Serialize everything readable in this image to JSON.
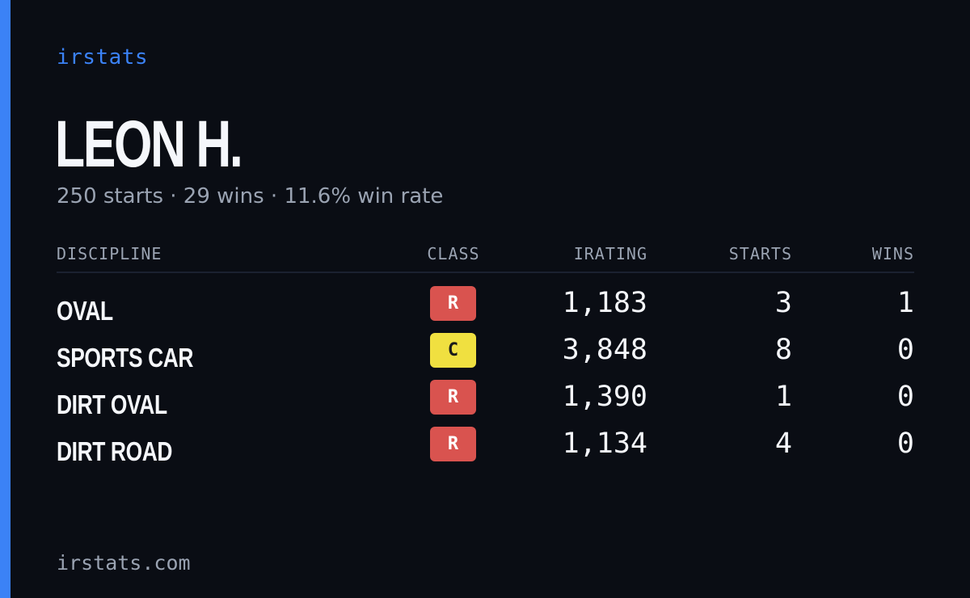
{
  "brand": "irstats",
  "player": {
    "name": "LEON H.",
    "summary": "250 starts · 29 wins · 11.6% win rate"
  },
  "colors": {
    "background": "#0a0d14",
    "accent": "#3b82f6",
    "muted_text": "#9aa3b2",
    "class_R": "#d9534f",
    "class_C": "#f0e040"
  },
  "table": {
    "headers": {
      "discipline": "DISCIPLINE",
      "class": "CLASS",
      "irating": "IRATING",
      "starts": "STARTS",
      "wins": "WINS"
    },
    "rows": [
      {
        "discipline": "OVAL",
        "class": "R",
        "class_color": "#d9534f",
        "class_text_color": "#ffffff",
        "irating": "1,183",
        "starts": "3",
        "wins": "1"
      },
      {
        "discipline": "SPORTS CAR",
        "class": "C",
        "class_color": "#f0e040",
        "class_text_color": "#1a1a1a",
        "irating": "3,848",
        "starts": "8",
        "wins": "0"
      },
      {
        "discipline": "DIRT OVAL",
        "class": "R",
        "class_color": "#d9534f",
        "class_text_color": "#ffffff",
        "irating": "1,390",
        "starts": "1",
        "wins": "0"
      },
      {
        "discipline": "DIRT ROAD",
        "class": "R",
        "class_color": "#d9534f",
        "class_text_color": "#ffffff",
        "irating": "1,134",
        "starts": "4",
        "wins": "0"
      }
    ]
  },
  "footer": "irstats.com"
}
